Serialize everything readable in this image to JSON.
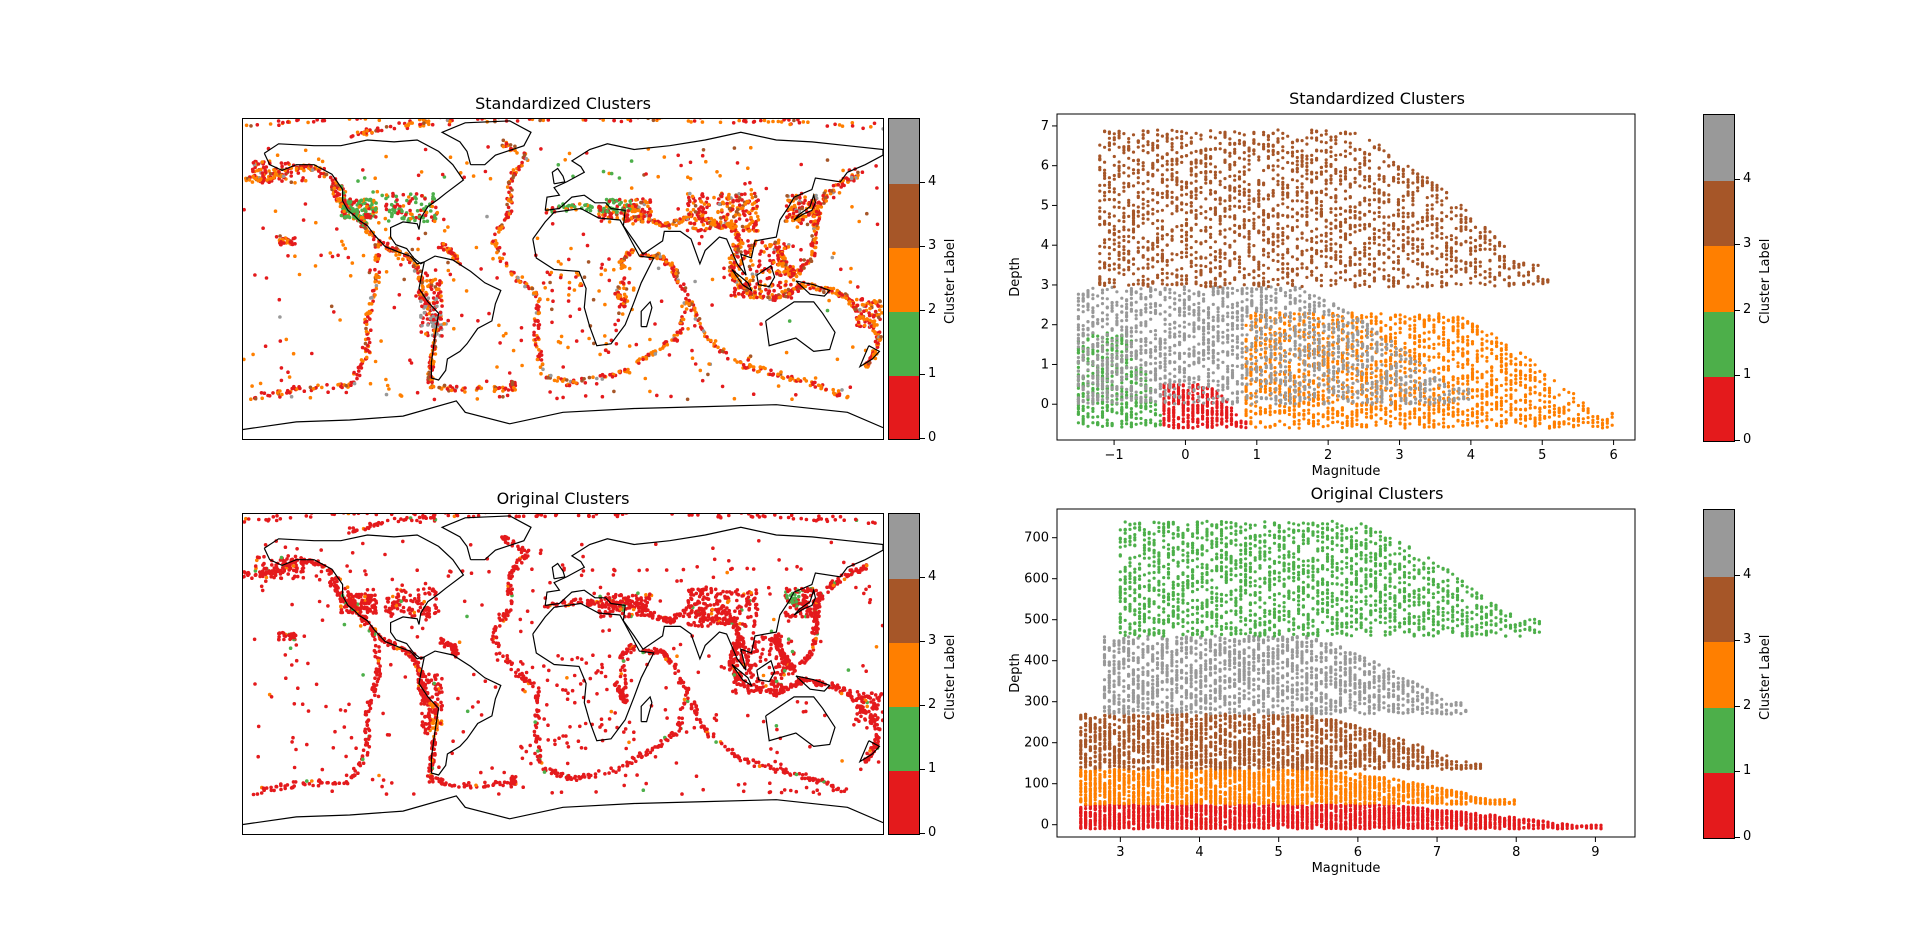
{
  "colors": {
    "cluster_0": "#e41a1c",
    "cluster_1": "#4daf4a",
    "cluster_2": "#ff7f00",
    "cluster_3": "#a65628",
    "cluster_4": "#999999",
    "coastline": "#000000"
  },
  "colorbar": {
    "label": "Cluster Label",
    "ticks": [
      "0",
      "1",
      "2",
      "3",
      "4"
    ]
  },
  "chart_data": [
    {
      "type": "scatter",
      "subtype": "map",
      "title": "Standardized Clusters",
      "colorbar_label": "Cluster Label",
      "clusters": [
        0,
        1,
        2,
        3,
        4
      ],
      "description_of_points": "earthquake epicentres colored by cluster"
    },
    {
      "type": "scatter",
      "title": "Standardized Clusters",
      "xlabel": "Magnitude",
      "ylabel": "Depth",
      "xlim": [
        -1.8,
        6.3
      ],
      "ylim": [
        -0.9,
        7.3
      ],
      "xticks": [
        "−1",
        "0",
        "1",
        "2",
        "3",
        "4",
        "5",
        "6"
      ],
      "yticks": [
        "0",
        "1",
        "2",
        "3",
        "4",
        "5",
        "6",
        "7"
      ],
      "colorbar_label": "Cluster Label",
      "clusters": [
        {
          "label": 1,
          "x_range": [
            -1.5,
            -0.3
          ],
          "y_range": [
            -0.6,
            1.8
          ]
        },
        {
          "label": 0,
          "x_range": [
            -0.3,
            0.85
          ],
          "y_range": [
            -0.6,
            0.5
          ]
        },
        {
          "label": 2,
          "x_range": [
            0.85,
            6.0
          ],
          "y_range": [
            -0.6,
            2.3
          ]
        },
        {
          "label": 4,
          "x_range": [
            -1.5,
            4.0
          ],
          "y_range": [
            0.0,
            2.95
          ]
        },
        {
          "label": 3,
          "x_range": [
            -1.2,
            5.1
          ],
          "y_range": [
            2.95,
            6.9
          ]
        }
      ]
    },
    {
      "type": "scatter",
      "subtype": "map",
      "title": "Original Clusters",
      "colorbar_label": "Cluster Label",
      "clusters": [
        0,
        1,
        2,
        3,
        4
      ]
    },
    {
      "type": "scatter",
      "title": "Original Clusters",
      "xlabel": "Magnitude",
      "ylabel": "Depth",
      "xlim": [
        2.2,
        9.5
      ],
      "ylim": [
        -30,
        770
      ],
      "xticks": [
        "3",
        "4",
        "5",
        "6",
        "7",
        "8",
        "9"
      ],
      "yticks": [
        "0",
        "100",
        "200",
        "300",
        "400",
        "500",
        "600",
        "700"
      ],
      "colorbar_label": "Cluster Label",
      "clusters": [
        {
          "label": 0,
          "x_range": [
            2.5,
            9.1
          ],
          "y_range": [
            -10,
            50
          ]
        },
        {
          "label": 2,
          "x_range": [
            2.5,
            8.0
          ],
          "y_range": [
            50,
            135
          ]
        },
        {
          "label": 3,
          "x_range": [
            2.5,
            7.6
          ],
          "y_range": [
            135,
            270
          ]
        },
        {
          "label": 4,
          "x_range": [
            2.8,
            7.4
          ],
          "y_range": [
            270,
            460
          ]
        },
        {
          "label": 1,
          "x_range": [
            3.0,
            8.3
          ],
          "y_range": [
            460,
            740
          ]
        }
      ]
    }
  ]
}
